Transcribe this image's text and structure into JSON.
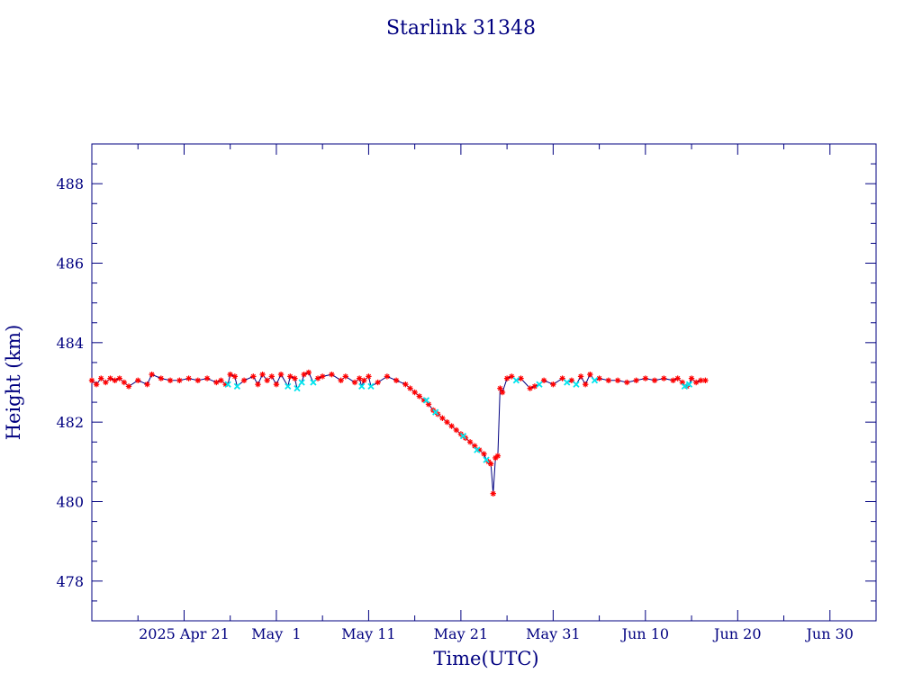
{
  "chart_data": {
    "type": "line",
    "title": "Starlink 31348",
    "xlabel": "Time(UTC)",
    "ylabel": "Height (km)",
    "x_is_date": true,
    "xlim": [
      "2025-04-11",
      "2025-07-05"
    ],
    "ylim": [
      477,
      489
    ],
    "x_ticks": [
      {
        "date": "2025-04-21",
        "label": "2025 Apr 21"
      },
      {
        "date": "2025-05-01",
        "label": "May  1"
      },
      {
        "date": "2025-05-11",
        "label": "May 11"
      },
      {
        "date": "2025-05-21",
        "label": "May 21"
      },
      {
        "date": "2025-05-31",
        "label": "May 31"
      },
      {
        "date": "2025-06-10",
        "label": "Jun 10"
      },
      {
        "date": "2025-06-20",
        "label": "Jun 20"
      },
      {
        "date": "2025-06-30",
        "label": "Jun 30"
      }
    ],
    "y_ticks": [
      478,
      480,
      482,
      484,
      486,
      488
    ],
    "grid": false,
    "colors": {
      "axis": "#000080",
      "line": "#000080",
      "marker_primary": "#ff0000",
      "marker_secondary": "#00e5ee"
    },
    "series": [
      {
        "marker": "*",
        "color": "#ff0000",
        "points": [
          [
            "2025-04-11T00:00",
            483.05
          ],
          [
            "2025-04-11T12:00",
            482.95
          ],
          [
            "2025-04-12T00:00",
            483.1
          ],
          [
            "2025-04-12T12:00",
            483.0
          ],
          [
            "2025-04-13T00:00",
            483.1
          ],
          [
            "2025-04-13T12:00",
            483.05
          ],
          [
            "2025-04-14T00:00",
            483.1
          ],
          [
            "2025-04-14T12:00",
            483.0
          ],
          [
            "2025-04-15T00:00",
            482.9
          ],
          [
            "2025-04-16T00:00",
            483.05
          ],
          [
            "2025-04-17T00:00",
            482.95
          ],
          [
            "2025-04-17T12:00",
            483.2
          ],
          [
            "2025-04-18T12:00",
            483.1
          ],
          [
            "2025-04-19T12:00",
            483.05
          ],
          [
            "2025-04-20T12:00",
            483.05
          ],
          [
            "2025-04-21T12:00",
            483.1
          ],
          [
            "2025-04-22T12:00",
            483.05
          ],
          [
            "2025-04-23T12:00",
            483.1
          ],
          [
            "2025-04-24T12:00",
            483.0
          ],
          [
            "2025-04-25T00:00",
            483.05
          ],
          [
            "2025-04-25T12:00",
            482.95
          ],
          [
            "2025-04-26T00:00",
            483.2
          ],
          [
            "2025-04-26T12:00",
            483.15
          ],
          [
            "2025-04-27T12:00",
            483.05
          ],
          [
            "2025-04-28T12:00",
            483.15
          ],
          [
            "2025-04-29T00:00",
            482.95
          ],
          [
            "2025-04-29T12:00",
            483.2
          ],
          [
            "2025-04-30T00:00",
            483.05
          ],
          [
            "2025-04-30T12:00",
            483.15
          ],
          [
            "2025-05-01T00:00",
            482.95
          ],
          [
            "2025-05-01T12:00",
            483.2
          ],
          [
            "2025-05-02T12:00",
            483.15
          ],
          [
            "2025-05-03T00:00",
            483.1
          ],
          [
            "2025-05-04T00:00",
            483.2
          ],
          [
            "2025-05-04T12:00",
            483.25
          ],
          [
            "2025-05-05T12:00",
            483.1
          ],
          [
            "2025-05-06T00:00",
            483.15
          ],
          [
            "2025-05-07T00:00",
            483.2
          ],
          [
            "2025-05-08T00:00",
            483.05
          ],
          [
            "2025-05-08T12:00",
            483.15
          ],
          [
            "2025-05-09T12:00",
            483.0
          ],
          [
            "2025-05-10T00:00",
            483.1
          ],
          [
            "2025-05-10T12:00",
            483.05
          ],
          [
            "2025-05-11T00:00",
            483.15
          ],
          [
            "2025-05-12T00:00",
            483.0
          ],
          [
            "2025-05-13T00:00",
            483.15
          ],
          [
            "2025-05-14T00:00",
            483.05
          ],
          [
            "2025-05-15T00:00",
            482.95
          ],
          [
            "2025-05-15T12:00",
            482.85
          ],
          [
            "2025-05-16T00:00",
            482.75
          ],
          [
            "2025-05-16T12:00",
            482.65
          ],
          [
            "2025-05-17T00:00",
            482.55
          ],
          [
            "2025-05-17T12:00",
            482.45
          ],
          [
            "2025-05-18T00:00",
            482.3
          ],
          [
            "2025-05-18T12:00",
            482.2
          ],
          [
            "2025-05-19T00:00",
            482.1
          ],
          [
            "2025-05-19T12:00",
            482.0
          ],
          [
            "2025-05-20T00:00",
            481.9
          ],
          [
            "2025-05-20T12:00",
            481.8
          ],
          [
            "2025-05-21T00:00",
            481.7
          ],
          [
            "2025-05-21T12:00",
            481.6
          ],
          [
            "2025-05-22T00:00",
            481.5
          ],
          [
            "2025-05-22T12:00",
            481.4
          ],
          [
            "2025-05-23T00:00",
            481.3
          ],
          [
            "2025-05-23T12:00",
            481.2
          ],
          [
            "2025-05-24T00:00",
            481.0
          ],
          [
            "2025-05-24T06:00",
            480.95
          ],
          [
            "2025-05-24T12:00",
            480.2
          ],
          [
            "2025-05-24T18:00",
            481.1
          ],
          [
            "2025-05-25T00:00",
            481.15
          ],
          [
            "2025-05-25T06:00",
            482.85
          ],
          [
            "2025-05-25T12:00",
            482.75
          ],
          [
            "2025-05-26T00:00",
            483.1
          ],
          [
            "2025-05-26T12:00",
            483.15
          ],
          [
            "2025-05-27T12:00",
            483.1
          ],
          [
            "2025-05-28T12:00",
            482.85
          ],
          [
            "2025-05-29T00:00",
            482.9
          ],
          [
            "2025-05-30T00:00",
            483.05
          ],
          [
            "2025-05-31T00:00",
            482.95
          ],
          [
            "2025-06-01T00:00",
            483.1
          ],
          [
            "2025-06-02T00:00",
            483.05
          ],
          [
            "2025-06-03T00:00",
            483.15
          ],
          [
            "2025-06-03T12:00",
            482.95
          ],
          [
            "2025-06-04T00:00",
            483.2
          ],
          [
            "2025-06-05T00:00",
            483.1
          ],
          [
            "2025-06-06T00:00",
            483.05
          ],
          [
            "2025-06-07T00:00",
            483.05
          ],
          [
            "2025-06-08T00:00",
            483.0
          ],
          [
            "2025-06-09T00:00",
            483.05
          ],
          [
            "2025-06-10T00:00",
            483.1
          ],
          [
            "2025-06-11T00:00",
            483.05
          ],
          [
            "2025-06-12T00:00",
            483.1
          ],
          [
            "2025-06-13T00:00",
            483.05
          ],
          [
            "2025-06-13T12:00",
            483.1
          ],
          [
            "2025-06-14T00:00",
            483.0
          ],
          [
            "2025-06-14T12:00",
            482.9
          ],
          [
            "2025-06-15T00:00",
            483.1
          ],
          [
            "2025-06-15T12:00",
            483.0
          ],
          [
            "2025-06-16T00:00",
            483.05
          ],
          [
            "2025-06-16T12:00",
            483.05
          ]
        ]
      },
      {
        "marker": "x",
        "color": "#00e5ee",
        "points": [
          [
            "2025-04-25T18:00",
            482.95
          ],
          [
            "2025-04-26T18:00",
            482.9
          ],
          [
            "2025-05-02T06:00",
            482.9
          ],
          [
            "2025-05-03T06:00",
            482.85
          ],
          [
            "2025-05-03T18:00",
            483.0
          ],
          [
            "2025-05-05T00:00",
            483.0
          ],
          [
            "2025-05-10T06:00",
            482.9
          ],
          [
            "2025-05-11T06:00",
            482.9
          ],
          [
            "2025-05-17T06:00",
            482.55
          ],
          [
            "2025-05-18T06:00",
            482.25
          ],
          [
            "2025-05-21T06:00",
            481.65
          ],
          [
            "2025-05-22T18:00",
            481.3
          ],
          [
            "2025-05-23T18:00",
            481.05
          ],
          [
            "2025-05-27T00:00",
            483.05
          ],
          [
            "2025-05-29T12:00",
            482.95
          ],
          [
            "2025-06-01T12:00",
            483.0
          ],
          [
            "2025-06-02T12:00",
            482.95
          ],
          [
            "2025-06-04T12:00",
            483.05
          ],
          [
            "2025-06-14T06:00",
            482.9
          ],
          [
            "2025-06-14T18:00",
            482.95
          ]
        ]
      }
    ]
  }
}
